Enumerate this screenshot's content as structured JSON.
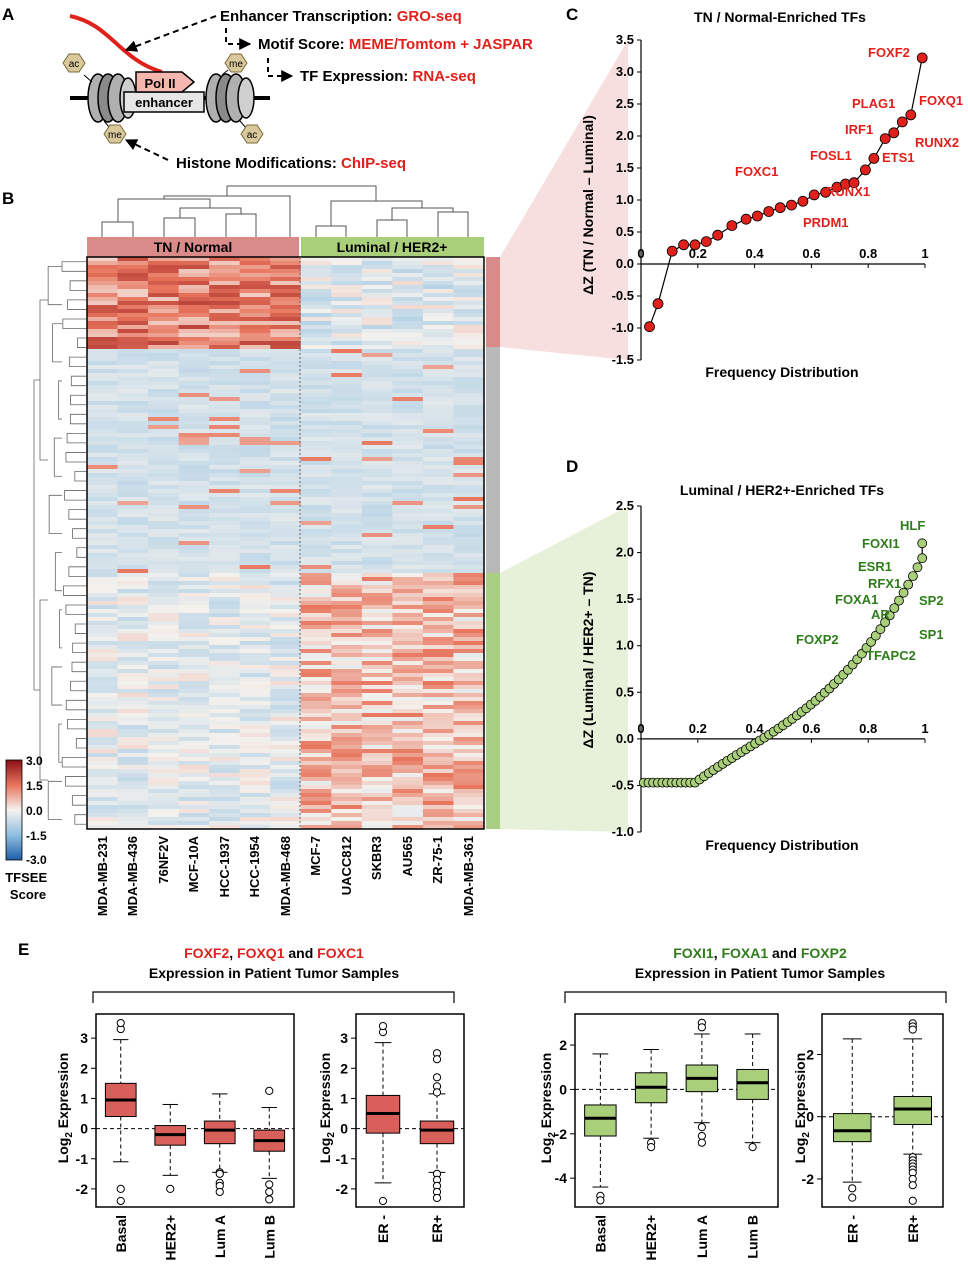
{
  "colors": {
    "red": "#e0211b",
    "green": "#2e7d1b",
    "tn_fill": "#d95f5b",
    "lum_fill": "#a9cf7a",
    "bar_tn": "#d98b8a",
    "bar_grey": "#b9b9b9",
    "bar_green": "#a8cf84",
    "white": "#ffffff"
  },
  "panel_a": {
    "label": "A",
    "lines": [
      {
        "prefix": "Enhancer Transcription: ",
        "method": "GRO-seq"
      },
      {
        "prefix": "Motif Score: ",
        "method": "MEME/Tomtom + JASPAR"
      },
      {
        "prefix": "TF Expression: ",
        "method": "RNA-seq"
      },
      {
        "prefix": "Histone Modifications: ",
        "method": "ChIP-seq"
      }
    ],
    "polii": "Pol II",
    "enhancer": "enhancer",
    "marks": [
      "ac",
      "me",
      "me",
      "ac"
    ]
  },
  "panel_b": {
    "label": "B",
    "group_tn": "TN / Normal",
    "group_lum": "Luminal / HER2+",
    "cell_lines": [
      "MDA-MB-231",
      "MDA-MB-436",
      "76NF2V",
      "MCF-10A",
      "HCC-1937",
      "HCC-1954",
      "MDA-MB-468",
      "MCF-7",
      "UACC812",
      "SKBR3",
      "AU565",
      "ZR-75-1",
      "MDA-MB-361"
    ],
    "scale_ticks": [
      "3.0",
      "1.5",
      "0.0",
      "-1.5",
      "-3.0"
    ],
    "scale_title": [
      "TFSEE",
      "Score"
    ]
  },
  "panel_c": {
    "label": "C",
    "title": "TN / Normal-Enriched TFs",
    "ylabel": "ΔZ (TN / Normal – Luminal)",
    "xlabel": "Frequency Distribution",
    "xticks": [
      "0",
      "0.2",
      "0.4",
      "0.6",
      "0.8",
      "1"
    ],
    "yticks": [
      "3.5",
      "3.0",
      "2.5",
      "2.0",
      "1.5",
      "1.0",
      "0.5",
      "0.0",
      "-0.5",
      "-1.0",
      "-1.5"
    ],
    "labels": [
      "FOXF2",
      "PLAG1",
      "FOXQ1",
      "IRF1",
      "RUNX2",
      "FOSL1",
      "ETS1",
      "FOXC1",
      "RUNX1",
      "PRDM1"
    ]
  },
  "panel_d": {
    "label": "D",
    "title": "Luminal / HER2+-Enriched TFs",
    "ylabel": "ΔZ (Luminal / HER2+ – TN)",
    "xlabel": "Frequency Distribution",
    "xticks": [
      "0",
      "0.2",
      "0.4",
      "0.6",
      "0.8",
      "1"
    ],
    "yticks": [
      "2.5",
      "2.0",
      "1.5",
      "1.0",
      "0.5",
      "0.0",
      "-0.5",
      "-1.0"
    ],
    "labels": [
      "HLF",
      "FOXI1",
      "ESR1",
      "RFX1",
      "FOXA1",
      "SP2",
      "AR",
      "SP1",
      "FOXP2",
      "TFAPC2"
    ]
  },
  "panel_e": {
    "label": "E",
    "left_title": {
      "genes": [
        "FOXF2",
        ", ",
        "FOXQ1",
        " and ",
        "FOXC1"
      ],
      "line2": "Expression in Patient Tumor Samples"
    },
    "right_title": {
      "genes": [
        "FOXI1",
        ", ",
        "FOXA1",
        " and ",
        "FOXP2"
      ],
      "line2": "Expression in Patient Tumor Samples"
    },
    "ylabel": "Log2 Expression",
    "box1": {
      "cats": [
        "Basal",
        "HER2+",
        "Lum A",
        "Lum B"
      ],
      "yticks": [
        "3",
        "2",
        "1",
        "0",
        "-1",
        "-2"
      ],
      "boxes": [
        {
          "q1": 0.4,
          "med": 0.95,
          "q3": 1.5,
          "lo": -1.1,
          "hi": 2.95,
          "out": [
            3.3,
            3.5,
            -2.0,
            -2.4
          ]
        },
        {
          "q1": -0.55,
          "med": -0.2,
          "q3": 0.1,
          "lo": -1.55,
          "hi": 0.8,
          "out": [
            -2.0
          ]
        },
        {
          "q1": -0.5,
          "med": -0.05,
          "q3": 0.25,
          "lo": -1.45,
          "hi": 1.15,
          "out": [
            -1.45,
            -1.5,
            -1.8,
            -1.9,
            -2.1
          ]
        },
        {
          "q1": -0.75,
          "med": -0.4,
          "q3": -0.05,
          "lo": -1.65,
          "hi": 0.7,
          "out": [
            1.25,
            -1.85,
            -2.1,
            -2.35
          ]
        }
      ]
    },
    "box2": {
      "cats": [
        "ER -",
        "ER+"
      ],
      "yticks": [
        "3",
        "2",
        "1",
        "0",
        "-1",
        "-2"
      ],
      "boxes": [
        {
          "q1": -0.15,
          "med": 0.5,
          "q3": 1.1,
          "lo": -1.8,
          "hi": 2.85,
          "out": [
            3.2,
            3.4,
            -2.4
          ]
        },
        {
          "q1": -0.5,
          "med": -0.05,
          "q3": 0.25,
          "lo": -1.45,
          "hi": 1.15,
          "out": [
            2.5,
            2.3,
            1.7,
            1.4,
            1.2,
            -1.5,
            -1.7,
            -1.9,
            -2.1,
            -2.3
          ]
        }
      ]
    },
    "box3": {
      "cats": [
        "Basal",
        "HER2+",
        "Lum A",
        "Lum B"
      ],
      "yticks": [
        "2",
        "0",
        "-2",
        "-4"
      ],
      "boxes": [
        {
          "q1": -2.1,
          "med": -1.3,
          "q3": -0.7,
          "lo": -4.4,
          "hi": 1.6,
          "out": [
            -4.8,
            -5.0
          ]
        },
        {
          "q1": -0.6,
          "med": 0.1,
          "q3": 0.75,
          "lo": -2.2,
          "hi": 1.8,
          "out": [
            -2.4,
            -2.6
          ]
        },
        {
          "q1": -0.1,
          "med": 0.5,
          "q3": 1.1,
          "lo": -1.5,
          "hi": 2.5,
          "out": [
            3.0,
            2.8,
            -1.7,
            -2.1,
            -2.4
          ]
        },
        {
          "q1": -0.45,
          "med": 0.3,
          "q3": 0.9,
          "lo": -2.4,
          "hi": 2.5,
          "out": [
            -2.6
          ]
        }
      ]
    },
    "box4": {
      "cats": [
        "ER -",
        "ER+"
      ],
      "yticks": [
        "2",
        "0",
        "-2"
      ],
      "boxes": [
        {
          "q1": -0.8,
          "med": -0.45,
          "q3": 0.1,
          "lo": -2.1,
          "hi": 2.5,
          "out": [
            -2.3,
            -2.6
          ]
        },
        {
          "q1": -0.25,
          "med": 0.25,
          "q3": 0.65,
          "lo": -1.2,
          "hi": 2.5,
          "out": [
            3.0,
            2.9,
            2.8,
            -1.3,
            -1.4,
            -1.5,
            -1.6,
            -1.7,
            -1.8,
            -2.0,
            -2.2,
            -2.7
          ]
        }
      ]
    }
  }
}
